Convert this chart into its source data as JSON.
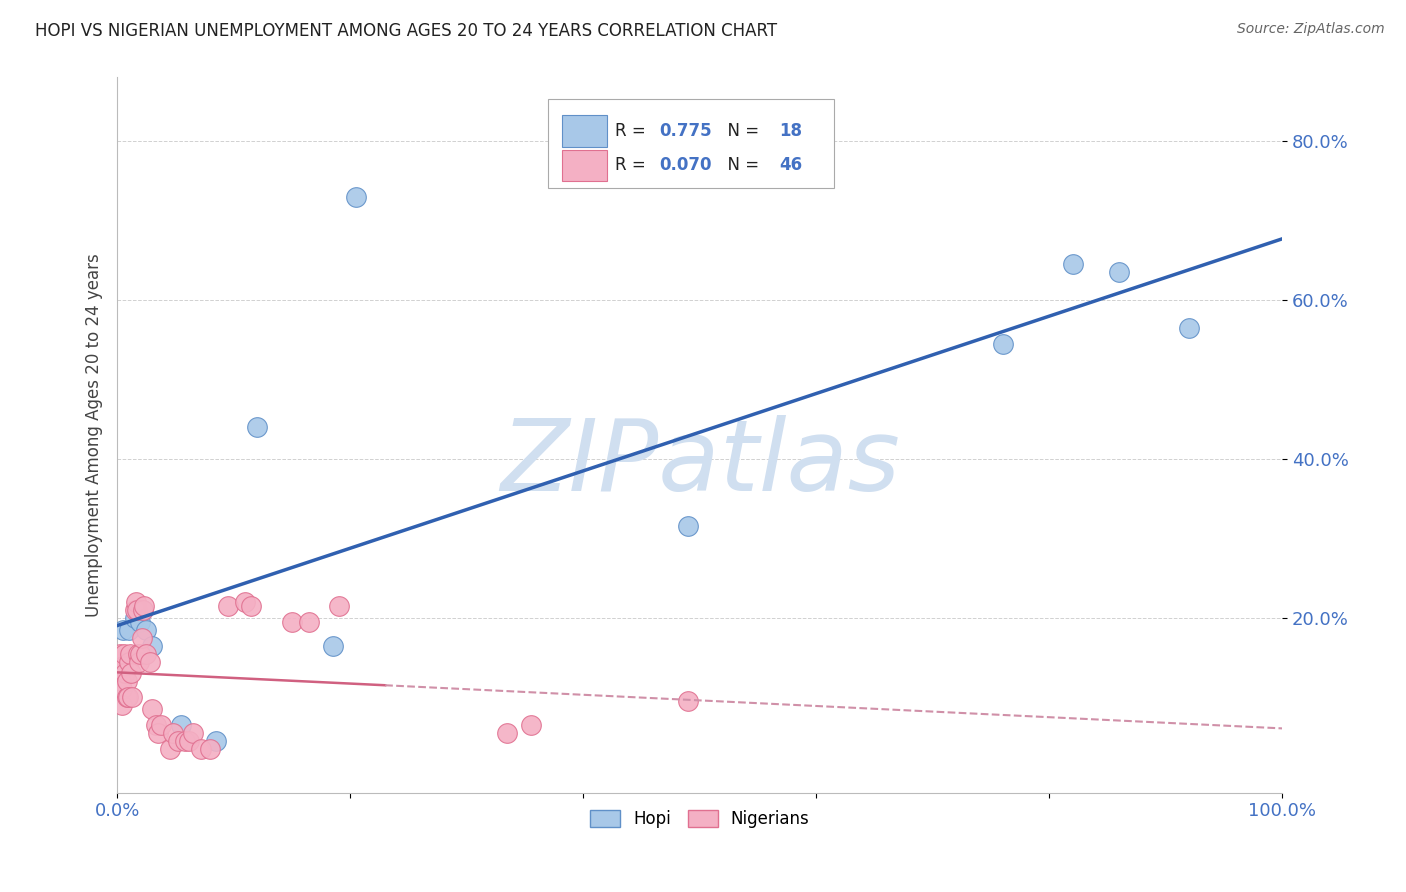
{
  "title": "HOPI VS NIGERIAN UNEMPLOYMENT AMONG AGES 20 TO 24 YEARS CORRELATION CHART",
  "source": "Source: ZipAtlas.com",
  "ylabel": "Unemployment Among Ages 20 to 24 years",
  "xlim": [
    0.0,
    1.0
  ],
  "ylim": [
    -0.02,
    0.88
  ],
  "xticks": [
    0.0,
    0.2,
    0.4,
    0.6,
    0.8,
    1.0
  ],
  "xtick_labels": [
    "0.0%",
    "",
    "",
    "",
    "",
    "100.0%"
  ],
  "yticks": [
    0.2,
    0.4,
    0.6,
    0.8
  ],
  "ytick_labels": [
    "20.0%",
    "40.0%",
    "60.0%",
    "80.0%"
  ],
  "hopi_color": "#a8c8e8",
  "nigerian_color": "#f4b0c4",
  "hopi_edge": "#6090c8",
  "nigerian_edge": "#e07090",
  "trend_hopi_color": "#3060b0",
  "trend_nigerian_color": "#d06080",
  "trend_nigerian_dash_color": "#d090a8",
  "watermark": "ZIPatlas",
  "watermark_color": "#d0dff0",
  "hopi_points": [
    [
      0.005,
      0.185
    ],
    [
      0.01,
      0.185
    ],
    [
      0.015,
      0.2
    ],
    [
      0.018,
      0.21
    ],
    [
      0.02,
      0.195
    ],
    [
      0.022,
      0.21
    ],
    [
      0.025,
      0.185
    ],
    [
      0.03,
      0.165
    ],
    [
      0.055,
      0.065
    ],
    [
      0.085,
      0.045
    ],
    [
      0.12,
      0.44
    ],
    [
      0.185,
      0.165
    ],
    [
      0.205,
      0.73
    ],
    [
      0.49,
      0.315
    ],
    [
      0.76,
      0.545
    ],
    [
      0.82,
      0.645
    ],
    [
      0.86,
      0.635
    ],
    [
      0.92,
      0.565
    ]
  ],
  "nigerian_points": [
    [
      0.002,
      0.155
    ],
    [
      0.003,
      0.12
    ],
    [
      0.004,
      0.11
    ],
    [
      0.004,
      0.09
    ],
    [
      0.005,
      0.14
    ],
    [
      0.006,
      0.155
    ],
    [
      0.007,
      0.13
    ],
    [
      0.008,
      0.1
    ],
    [
      0.008,
      0.12
    ],
    [
      0.009,
      0.1
    ],
    [
      0.01,
      0.145
    ],
    [
      0.011,
      0.155
    ],
    [
      0.012,
      0.13
    ],
    [
      0.013,
      0.1
    ],
    [
      0.015,
      0.21
    ],
    [
      0.016,
      0.22
    ],
    [
      0.017,
      0.21
    ],
    [
      0.018,
      0.155
    ],
    [
      0.019,
      0.145
    ],
    [
      0.02,
      0.155
    ],
    [
      0.021,
      0.175
    ],
    [
      0.022,
      0.21
    ],
    [
      0.023,
      0.215
    ],
    [
      0.025,
      0.155
    ],
    [
      0.028,
      0.145
    ],
    [
      0.03,
      0.085
    ],
    [
      0.033,
      0.065
    ],
    [
      0.035,
      0.055
    ],
    [
      0.038,
      0.065
    ],
    [
      0.045,
      0.035
    ],
    [
      0.048,
      0.055
    ],
    [
      0.052,
      0.045
    ],
    [
      0.058,
      0.045
    ],
    [
      0.062,
      0.045
    ],
    [
      0.065,
      0.055
    ],
    [
      0.072,
      0.035
    ],
    [
      0.08,
      0.035
    ],
    [
      0.095,
      0.215
    ],
    [
      0.11,
      0.22
    ],
    [
      0.115,
      0.215
    ],
    [
      0.15,
      0.195
    ],
    [
      0.165,
      0.195
    ],
    [
      0.19,
      0.215
    ],
    [
      0.335,
      0.055
    ],
    [
      0.355,
      0.065
    ],
    [
      0.49,
      0.095
    ]
  ]
}
